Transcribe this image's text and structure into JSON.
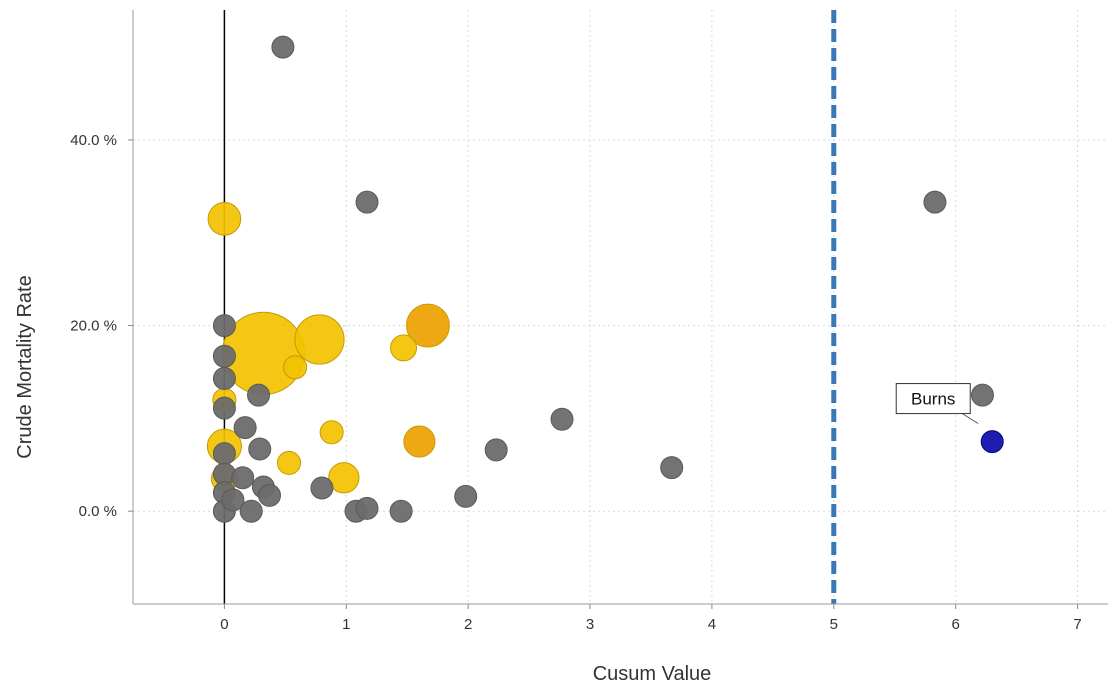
{
  "chart_data": {
    "type": "scatter",
    "xlabel": "Cusum Value",
    "ylabel": "Crude Mortality Rate",
    "xlim": [
      -0.75,
      7.25
    ],
    "ylim": [
      -10,
      54
    ],
    "x_ticks": [
      "0",
      "1",
      "2",
      "3",
      "4",
      "5",
      "6",
      "7"
    ],
    "x_tick_values": [
      0,
      1,
      2,
      3,
      4,
      5,
      6,
      7
    ],
    "y_ticks": [
      "0.0 %",
      "20.0 %",
      "40.0 %"
    ],
    "y_tick_values": [
      0,
      20,
      40
    ],
    "grid": true,
    "legend": "none",
    "threshold_line": {
      "x": 5,
      "color": "#3a78b5",
      "style": "dashed"
    },
    "zero_line": {
      "x": 0,
      "color": "#000000"
    },
    "colors": {
      "gray": "#6b6b6b",
      "yellow": "#f2c200",
      "orange": "#eda100",
      "blue": "#0a0aa8"
    },
    "points": [
      {
        "x": 0.48,
        "y": 50.0,
        "size": 1,
        "color": "gray"
      },
      {
        "x": 1.17,
        "y": 33.3,
        "size": 1,
        "color": "gray"
      },
      {
        "x": 5.83,
        "y": 33.3,
        "size": 1,
        "color": "gray"
      },
      {
        "x": 0.32,
        "y": 17.0,
        "size": 14,
        "color": "yellow"
      },
      {
        "x": 0.78,
        "y": 18.5,
        "size": 5,
        "color": "yellow"
      },
      {
        "x": 0.0,
        "y": 31.5,
        "size": 2.2,
        "color": "yellow"
      },
      {
        "x": 0.0,
        "y": 12.0,
        "size": 1.1,
        "color": "yellow"
      },
      {
        "x": 0.0,
        "y": 7.0,
        "size": 2.4,
        "color": "yellow"
      },
      {
        "x": 0.0,
        "y": 3.5,
        "size": 1.4,
        "color": "yellow"
      },
      {
        "x": 0.58,
        "y": 15.5,
        "size": 1.1,
        "color": "yellow"
      },
      {
        "x": 0.88,
        "y": 8.5,
        "size": 1.1,
        "color": "yellow"
      },
      {
        "x": 0.53,
        "y": 5.2,
        "size": 1.1,
        "color": "yellow"
      },
      {
        "x": 0.98,
        "y": 3.6,
        "size": 1.9,
        "color": "yellow"
      },
      {
        "x": 1.47,
        "y": 17.6,
        "size": 1.4,
        "color": "yellow"
      },
      {
        "x": 1.67,
        "y": 20.0,
        "size": 3.8,
        "color": "orange"
      },
      {
        "x": 1.6,
        "y": 7.5,
        "size": 2.0,
        "color": "orange"
      },
      {
        "x": 0.0,
        "y": 20.0,
        "size": 1,
        "color": "gray"
      },
      {
        "x": 0.0,
        "y": 16.7,
        "size": 1,
        "color": "gray"
      },
      {
        "x": 0.0,
        "y": 14.3,
        "size": 1,
        "color": "gray"
      },
      {
        "x": 0.0,
        "y": 11.1,
        "size": 1,
        "color": "gray"
      },
      {
        "x": 0.0,
        "y": 6.2,
        "size": 1,
        "color": "gray"
      },
      {
        "x": 0.0,
        "y": 4.0,
        "size": 1,
        "color": "gray"
      },
      {
        "x": 0.0,
        "y": 2.0,
        "size": 1,
        "color": "gray"
      },
      {
        "x": 0.0,
        "y": 0.0,
        "size": 1,
        "color": "gray"
      },
      {
        "x": 0.28,
        "y": 12.5,
        "size": 1,
        "color": "gray"
      },
      {
        "x": 0.17,
        "y": 9.0,
        "size": 1,
        "color": "gray"
      },
      {
        "x": 0.29,
        "y": 6.7,
        "size": 1,
        "color": "gray"
      },
      {
        "x": 0.15,
        "y": 3.6,
        "size": 1,
        "color": "gray"
      },
      {
        "x": 0.32,
        "y": 2.6,
        "size": 1,
        "color": "gray"
      },
      {
        "x": 0.37,
        "y": 1.7,
        "size": 1,
        "color": "gray"
      },
      {
        "x": 0.07,
        "y": 1.2,
        "size": 1,
        "color": "gray"
      },
      {
        "x": 0.22,
        "y": 0.0,
        "size": 1,
        "color": "gray"
      },
      {
        "x": 0.8,
        "y": 2.5,
        "size": 1,
        "color": "gray"
      },
      {
        "x": 1.08,
        "y": 0.0,
        "size": 1,
        "color": "gray"
      },
      {
        "x": 1.17,
        "y": 0.3,
        "size": 1,
        "color": "gray"
      },
      {
        "x": 1.45,
        "y": 0.0,
        "size": 1,
        "color": "gray"
      },
      {
        "x": 1.98,
        "y": 1.6,
        "size": 1,
        "color": "gray"
      },
      {
        "x": 2.23,
        "y": 6.6,
        "size": 1,
        "color": "gray"
      },
      {
        "x": 2.77,
        "y": 9.9,
        "size": 1,
        "color": "gray"
      },
      {
        "x": 3.67,
        "y": 4.7,
        "size": 1,
        "color": "gray"
      },
      {
        "x": 6.22,
        "y": 12.5,
        "size": 1,
        "color": "gray"
      },
      {
        "x": 6.3,
        "y": 7.5,
        "size": 1,
        "color": "blue"
      }
    ],
    "annotations": [
      {
        "text": "Burns",
        "x": 6.3,
        "y": 7.5
      }
    ]
  }
}
